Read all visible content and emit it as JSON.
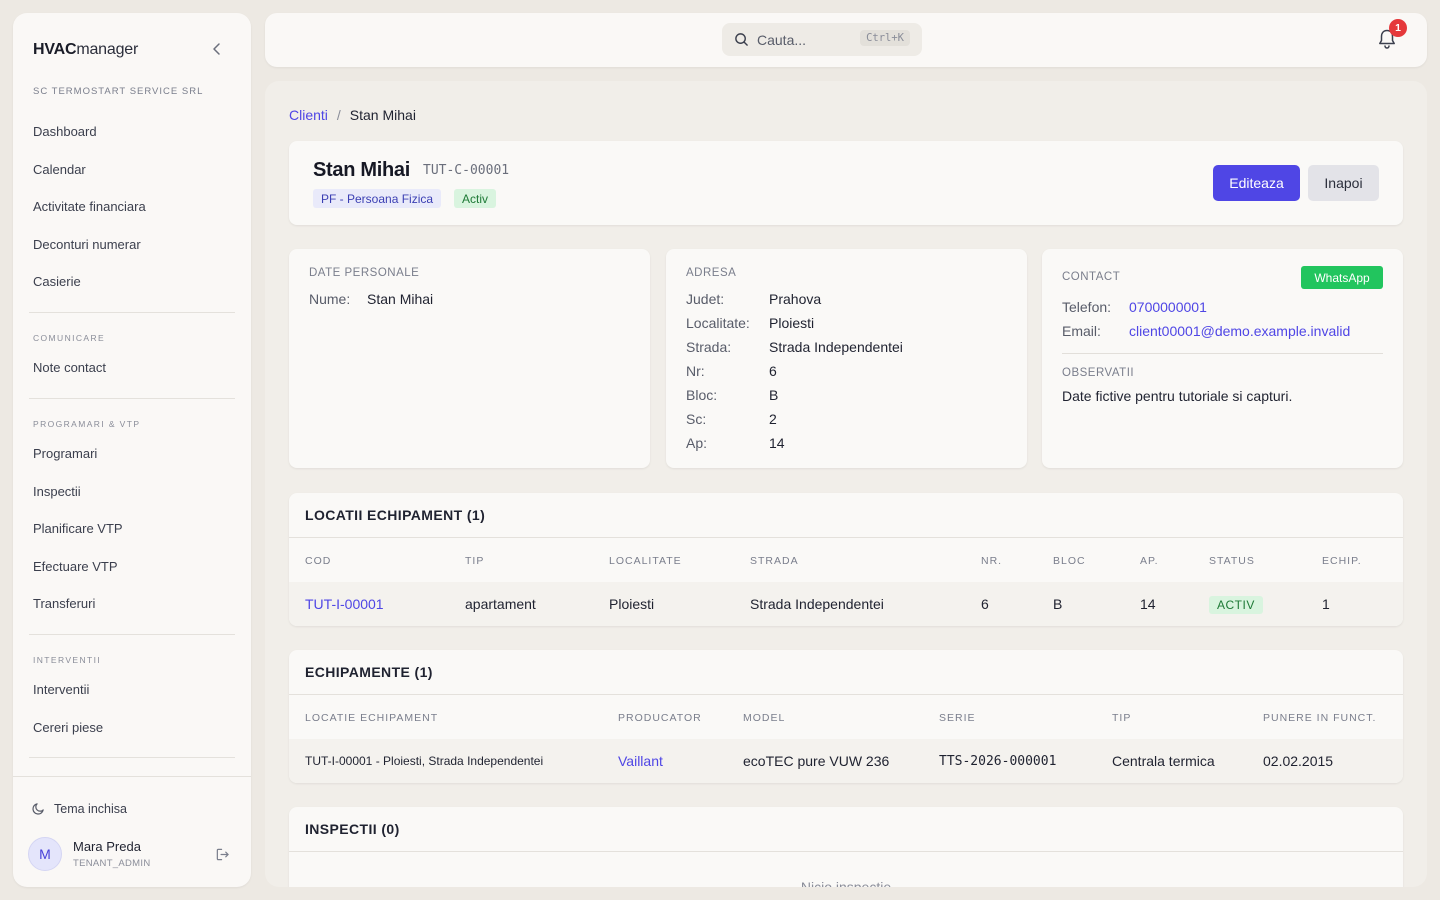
{
  "app": {
    "brand_bold": "HVAC",
    "brand_regular": "manager",
    "company": "SC TERMOSTART SERVICE SRL"
  },
  "sidebar": {
    "items": [
      {
        "label": "Dashboard"
      },
      {
        "label": "Calendar"
      },
      {
        "label": "Activitate financiara"
      },
      {
        "label": "Deconturi numerar"
      },
      {
        "label": "Casierie"
      }
    ],
    "sections": [
      {
        "title": "COMUNICARE",
        "items": [
          {
            "label": "Note contact"
          }
        ]
      },
      {
        "title": "PROGRAMARI & VTP",
        "items": [
          {
            "label": "Programari"
          },
          {
            "label": "Inspectii"
          },
          {
            "label": "Planificare VTP"
          },
          {
            "label": "Efectuare VTP"
          },
          {
            "label": "Transferuri"
          }
        ]
      },
      {
        "title": "INTERVENTII",
        "items": [
          {
            "label": "Interventii"
          },
          {
            "label": "Cereri piese"
          }
        ]
      }
    ],
    "theme_label": "Tema inchisa",
    "user": {
      "initial": "M",
      "name": "Mara Preda",
      "role": "TENANT_ADMIN"
    }
  },
  "topbar": {
    "search_placeholder": "Cauta...",
    "search_shortcut": "Ctrl+K",
    "notification_count": "1"
  },
  "breadcrumb": {
    "parent": "Clienti",
    "separator": "/",
    "current": "Stan Mihai"
  },
  "client": {
    "name": "Stan Mihai",
    "code": "TUT-C-00001",
    "type_badge": "PF - Persoana Fizica",
    "status_badge": "Activ",
    "edit_label": "Editeaza",
    "back_label": "Inapoi"
  },
  "personal": {
    "title": "DATE PERSONALE",
    "fields": [
      {
        "key": "Nume:",
        "value": "Stan Mihai"
      }
    ]
  },
  "address": {
    "title": "ADRESA",
    "fields": [
      {
        "key": "Judet:",
        "value": "Prahova"
      },
      {
        "key": "Localitate:",
        "value": "Ploiesti"
      },
      {
        "key": "Strada:",
        "value": "Strada Independentei"
      },
      {
        "key": "Nr:",
        "value": "6"
      },
      {
        "key": "Bloc:",
        "value": "B"
      },
      {
        "key": "Sc:",
        "value": "2"
      },
      {
        "key": "Ap:",
        "value": "14"
      }
    ]
  },
  "contact": {
    "title": "CONTACT",
    "whatsapp_label": "WhatsApp",
    "fields": [
      {
        "key": "Telefon:",
        "value": "0700000001"
      },
      {
        "key": "Email:",
        "value": "client00001@demo.example.invalid"
      }
    ],
    "observations_title": "OBSERVATII",
    "observations": "Date fictive pentru tutoriale si capturi."
  },
  "locations": {
    "title": "LOCATII ECHIPAMENT (1)",
    "columns": [
      "COD",
      "TIP",
      "LOCALITATE",
      "STRADA",
      "NR.",
      "BLOC",
      "AP.",
      "STATUS",
      "ECHIP."
    ],
    "rows": [
      {
        "cod": "TUT-I-00001",
        "tip": "apartament",
        "localitate": "Ploiesti",
        "strada": "Strada Independentei",
        "nr": "6",
        "bloc": "B",
        "ap": "14",
        "status": "ACTIV",
        "echip": "1"
      }
    ]
  },
  "equipment": {
    "title": "ECHIPAMENTE (1)",
    "columns": [
      "LOCATIE ECHIPAMENT",
      "PRODUCATOR",
      "MODEL",
      "SERIE",
      "TIP",
      "PUNERE IN FUNCT."
    ],
    "rows": [
      {
        "locatie": "TUT-I-00001 - Ploiesti, Strada Independentei",
        "producator": "Vaillant",
        "model": "ecoTEC pure VUW 236",
        "serie": "TTS-2026-000001",
        "tip": "Centrala termica",
        "punere": "02.02.2015"
      }
    ]
  },
  "inspections": {
    "title": "INSPECTII (0)",
    "empty": "Nicio inspectie"
  }
}
